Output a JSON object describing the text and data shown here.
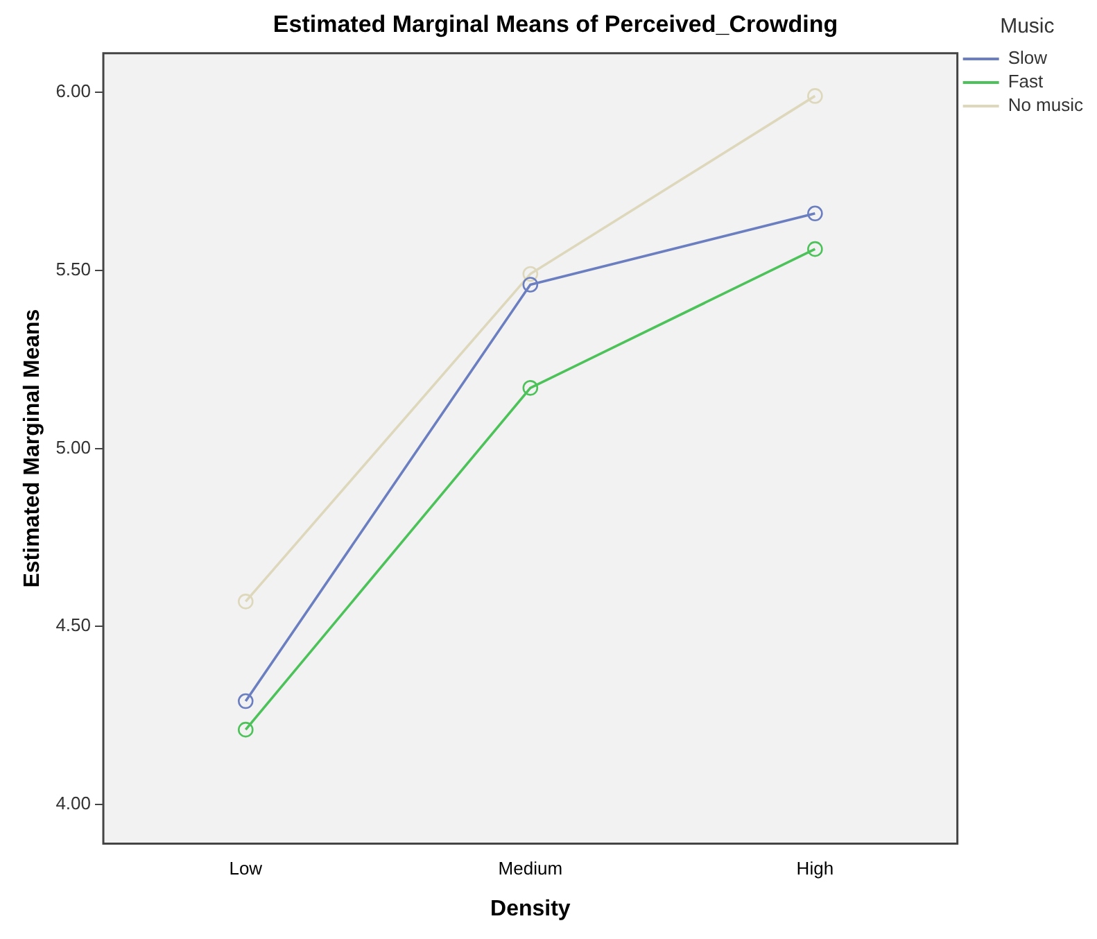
{
  "chart_data": {
    "type": "line",
    "title": "Estimated Marginal Means of Perceived_Crowding",
    "xlabel": "Density",
    "ylabel": "Estimated Marginal Means",
    "legend_title": "Music",
    "categories": [
      "Low",
      "Medium",
      "High"
    ],
    "series": [
      {
        "name": "Slow",
        "color": "#6b7fc0",
        "values": [
          4.29,
          5.46,
          5.66
        ]
      },
      {
        "name": "Fast",
        "color": "#4ec25a",
        "values": [
          4.21,
          5.17,
          5.56
        ]
      },
      {
        "name": "No music",
        "color": "#ddd8bc",
        "values": [
          4.57,
          5.49,
          5.99
        ]
      }
    ],
    "ylim": [
      3.89,
      6.11
    ],
    "yticks": [
      {
        "value": 4,
        "label": "4.00"
      },
      {
        "value": 4.5,
        "label": "4.50"
      },
      {
        "value": 5,
        "label": "5.00"
      },
      {
        "value": 5.5,
        "label": "5.50"
      },
      {
        "value": 6,
        "label": "6.00"
      }
    ],
    "grid": false,
    "legend": "top right",
    "marker": "circle",
    "line_style": "solid"
  }
}
